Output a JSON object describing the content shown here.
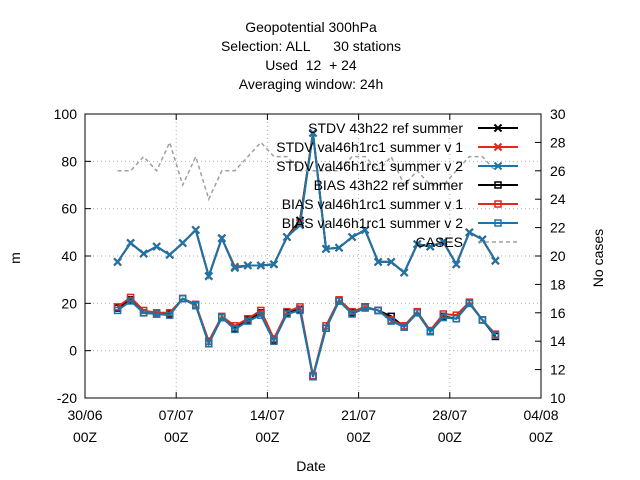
{
  "chart_data": {
    "type": "line",
    "title_lines": [
      "Geopotential 300hPa",
      "Selection: ALL      30 stations",
      "Used  12  + 24",
      "Averaging window: 24h"
    ],
    "xlabel": "Date",
    "ylabel": "m",
    "y2label": "No cases",
    "ylim": [
      -20,
      100
    ],
    "y2lim": [
      10,
      30
    ],
    "yticks": [
      "-20",
      "0",
      "20",
      "40",
      "60",
      "80",
      "100"
    ],
    "y2ticks": [
      "10",
      "12",
      "14",
      "16",
      "18",
      "20",
      "22",
      "24",
      "26",
      "28",
      "30"
    ],
    "xticks": [
      {
        "day": 0,
        "line1": "30/06",
        "line2": "00Z"
      },
      {
        "day": 7,
        "line1": "07/07",
        "line2": "00Z"
      },
      {
        "day": 14,
        "line1": "14/07",
        "line2": "00Z"
      },
      {
        "day": 21,
        "line1": "21/07",
        "line2": "00Z"
      },
      {
        "day": 28,
        "line1": "28/07",
        "line2": "00Z"
      },
      {
        "day": 35,
        "line1": "04/08",
        "line2": "00Z"
      }
    ],
    "grid": true,
    "x": [
      2.5,
      3.5,
      4.5,
      5.5,
      6.5,
      7.5,
      8.5,
      9.5,
      10.5,
      11.5,
      12.5,
      13.5,
      14.5,
      15.5,
      16.5,
      17.5,
      18.5,
      19.5,
      20.5,
      21.5,
      22.5,
      23.5,
      24.5,
      25.5,
      26.5,
      27.5,
      28.5,
      29.5,
      30.5,
      31.5
    ],
    "series": [
      {
        "name": "STDV 43h22_ref_summer",
        "legend_label": "STDV 43h22 ref summer",
        "color": "#000000",
        "marker": "x",
        "dash": false,
        "axis": "y",
        "values": [
          37.5,
          45.5,
          41,
          44,
          40.5,
          45.5,
          51,
          31.5,
          47.5,
          35,
          36,
          36,
          36.5,
          48,
          55,
          92,
          43,
          43.5,
          48,
          51,
          37.5,
          37.5,
          33,
          45,
          44,
          46,
          36.5,
          50,
          47,
          38
        ]
      },
      {
        "name": "STDV val46h1rc1_summer_v1",
        "legend_label": "STDV val46h1rc1 summer v 1",
        "color": "#dd2a1c",
        "marker": "x",
        "dash": false,
        "axis": "y",
        "values": [
          37.5,
          45.5,
          41,
          44,
          40.5,
          45.5,
          51,
          31.5,
          47.5,
          35.5,
          36,
          36,
          36.5,
          48,
          54,
          92,
          43,
          43.5,
          48,
          51,
          37.5,
          37.5,
          33,
          45,
          44,
          46,
          36.5,
          50,
          47,
          38
        ]
      },
      {
        "name": "STDV val46h1rc1_summer_v2",
        "legend_label": "STDV val46h1rc1 summer v 2",
        "color": "#1a76a8",
        "marker": "x",
        "dash": false,
        "axis": "y",
        "values": [
          37.5,
          45.5,
          41,
          44,
          40.5,
          45.5,
          51,
          31.5,
          47.5,
          35,
          36,
          36,
          36.5,
          48,
          53,
          92,
          43,
          43.5,
          48,
          51,
          37.5,
          37.5,
          33,
          45,
          44,
          46,
          36.5,
          50,
          47,
          38
        ]
      },
      {
        "name": "BIAS 43h22_ref_summer",
        "legend_label": "BIAS 43h22 ref summer",
        "color": "#000000",
        "marker": "square",
        "dash": false,
        "axis": "y",
        "values": [
          18,
          21.5,
          16,
          15.5,
          15.5,
          22,
          19.5,
          3,
          14,
          9.5,
          13,
          16,
          4.5,
          16,
          17.5,
          -11,
          9.5,
          21,
          16,
          18.5,
          17,
          14.5,
          10,
          16,
          8,
          14.5,
          13.5,
          20,
          13,
          6
        ]
      },
      {
        "name": "BIAS val46h1rc1_summer_v1",
        "legend_label": "BIAS val46h1rc1 summer v 1",
        "color": "#dd2a1c",
        "marker": "square",
        "dash": false,
        "axis": "y",
        "values": [
          18.5,
          22.5,
          17,
          16,
          16,
          22,
          19.5,
          4,
          14.5,
          10.5,
          13.5,
          17,
          5,
          16.5,
          18.5,
          -10.5,
          10.5,
          21.5,
          16.5,
          18.5,
          17,
          13,
          10.5,
          16.5,
          8.5,
          15.5,
          15,
          20.5,
          13,
          7
        ]
      },
      {
        "name": "BIAS val46h1rc1_summer_v2",
        "legend_label": "BIAS val46h1rc1 summer v 2",
        "color": "#1a76a8",
        "marker": "square",
        "dash": false,
        "axis": "y",
        "values": [
          17,
          21,
          16,
          15.5,
          15,
          22,
          19,
          3,
          14,
          9,
          12.5,
          15,
          4,
          15.5,
          17,
          -11,
          9.5,
          21,
          15.5,
          18,
          17,
          12.5,
          10,
          16,
          8,
          14,
          13.5,
          20,
          13,
          6.5
        ]
      },
      {
        "name": "CASES",
        "legend_label": "CASES",
        "color": "#a0a0a0",
        "marker": "none",
        "dash": true,
        "axis": "y2",
        "values": [
          26,
          26,
          27,
          26,
          28,
          25,
          27,
          24,
          26,
          26,
          27,
          28,
          27,
          27,
          26,
          26,
          26,
          26,
          27,
          27,
          26,
          27,
          25,
          26,
          25,
          25,
          26,
          27,
          27,
          26
        ]
      }
    ]
  }
}
